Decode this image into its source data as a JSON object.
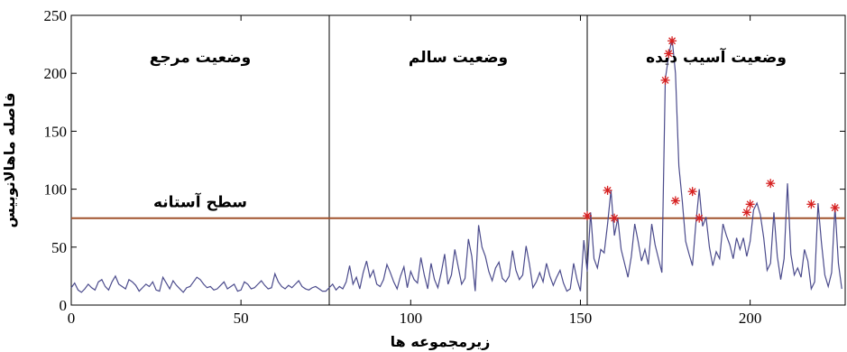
{
  "chart_data": {
    "type": "line",
    "xlabel": "زیرمجموعه ها",
    "ylabel": "فاصله ماهالانوبیس",
    "xlim": [
      0,
      228
    ],
    "ylim": [
      0,
      250
    ],
    "x_ticks": [
      0,
      50,
      100,
      150,
      200
    ],
    "y_ticks": [
      0,
      50,
      100,
      150,
      200,
      250
    ],
    "grid": false,
    "region_dividers": [
      76,
      152
    ],
    "region_labels": [
      {
        "text": "وضعیت مرجع",
        "x_center": 38
      },
      {
        "text": "وضعیت سالم",
        "x_center": 114
      },
      {
        "text": "وضعیت آسیب دیده",
        "x_center": 190
      }
    ],
    "threshold": {
      "value": 75,
      "label": "سطح آستانه",
      "color": "#a0522d"
    },
    "series": [
      {
        "color": "#4b4b8c",
        "values": [
          15,
          19,
          13,
          11,
          14,
          18,
          15,
          13,
          20,
          22,
          16,
          13,
          20,
          25,
          18,
          16,
          14,
          22,
          20,
          17,
          12,
          15,
          18,
          16,
          20,
          13,
          12,
          24,
          19,
          14,
          21,
          17,
          14,
          11,
          15,
          16,
          20,
          24,
          22,
          18,
          15,
          16,
          13,
          14,
          17,
          20,
          14,
          16,
          18,
          12,
          13,
          20,
          18,
          14,
          15,
          18,
          21,
          17,
          14,
          15,
          27,
          20,
          16,
          14,
          17,
          15,
          18,
          21,
          16,
          14,
          13,
          15,
          16,
          14,
          12,
          12,
          15,
          18,
          13,
          16,
          14,
          20,
          34,
          18,
          24,
          14,
          28,
          38,
          24,
          30,
          18,
          16,
          22,
          35,
          28,
          20,
          14,
          25,
          33,
          15,
          29,
          22,
          19,
          41,
          26,
          14,
          36,
          22,
          15,
          28,
          44,
          18,
          26,
          48,
          33,
          18,
          23,
          57,
          42,
          12,
          69,
          50,
          42,
          29,
          21,
          32,
          37,
          23,
          20,
          25,
          47,
          30,
          22,
          26,
          51,
          35,
          15,
          20,
          28,
          20,
          36,
          25,
          17,
          24,
          30,
          19,
          12,
          14,
          36,
          22,
          12,
          56,
          29,
          80,
          40,
          32,
          48,
          45,
          70,
          99,
          60,
          75,
          48,
          36,
          24,
          42,
          70,
          55,
          38,
          48,
          35,
          70,
          52,
          40,
          28,
          195,
          215,
          230,
          200,
          120,
          90,
          55,
          44,
          34,
          70,
          100,
          68,
          76,
          50,
          34,
          46,
          40,
          70,
          60,
          52,
          40,
          58,
          48,
          58,
          42,
          55,
          82,
          88,
          78,
          58,
          30,
          36,
          80,
          42,
          22,
          40,
          105,
          44,
          26,
          32,
          24,
          48,
          38,
          14,
          20,
          88,
          54,
          26,
          16,
          28,
          85,
          36,
          14
        ],
        "markers": [
          [
            152,
            77
          ],
          [
            158,
            99
          ],
          [
            160,
            75
          ],
          [
            175,
            194
          ],
          [
            176,
            217
          ],
          [
            177,
            228
          ],
          [
            178,
            90
          ],
          [
            183,
            98
          ],
          [
            185,
            75
          ],
          [
            199,
            80
          ],
          [
            200,
            87
          ],
          [
            206,
            105
          ],
          [
            218,
            87
          ],
          [
            225,
            84
          ]
        ],
        "marker_color": "#d62020"
      }
    ]
  }
}
